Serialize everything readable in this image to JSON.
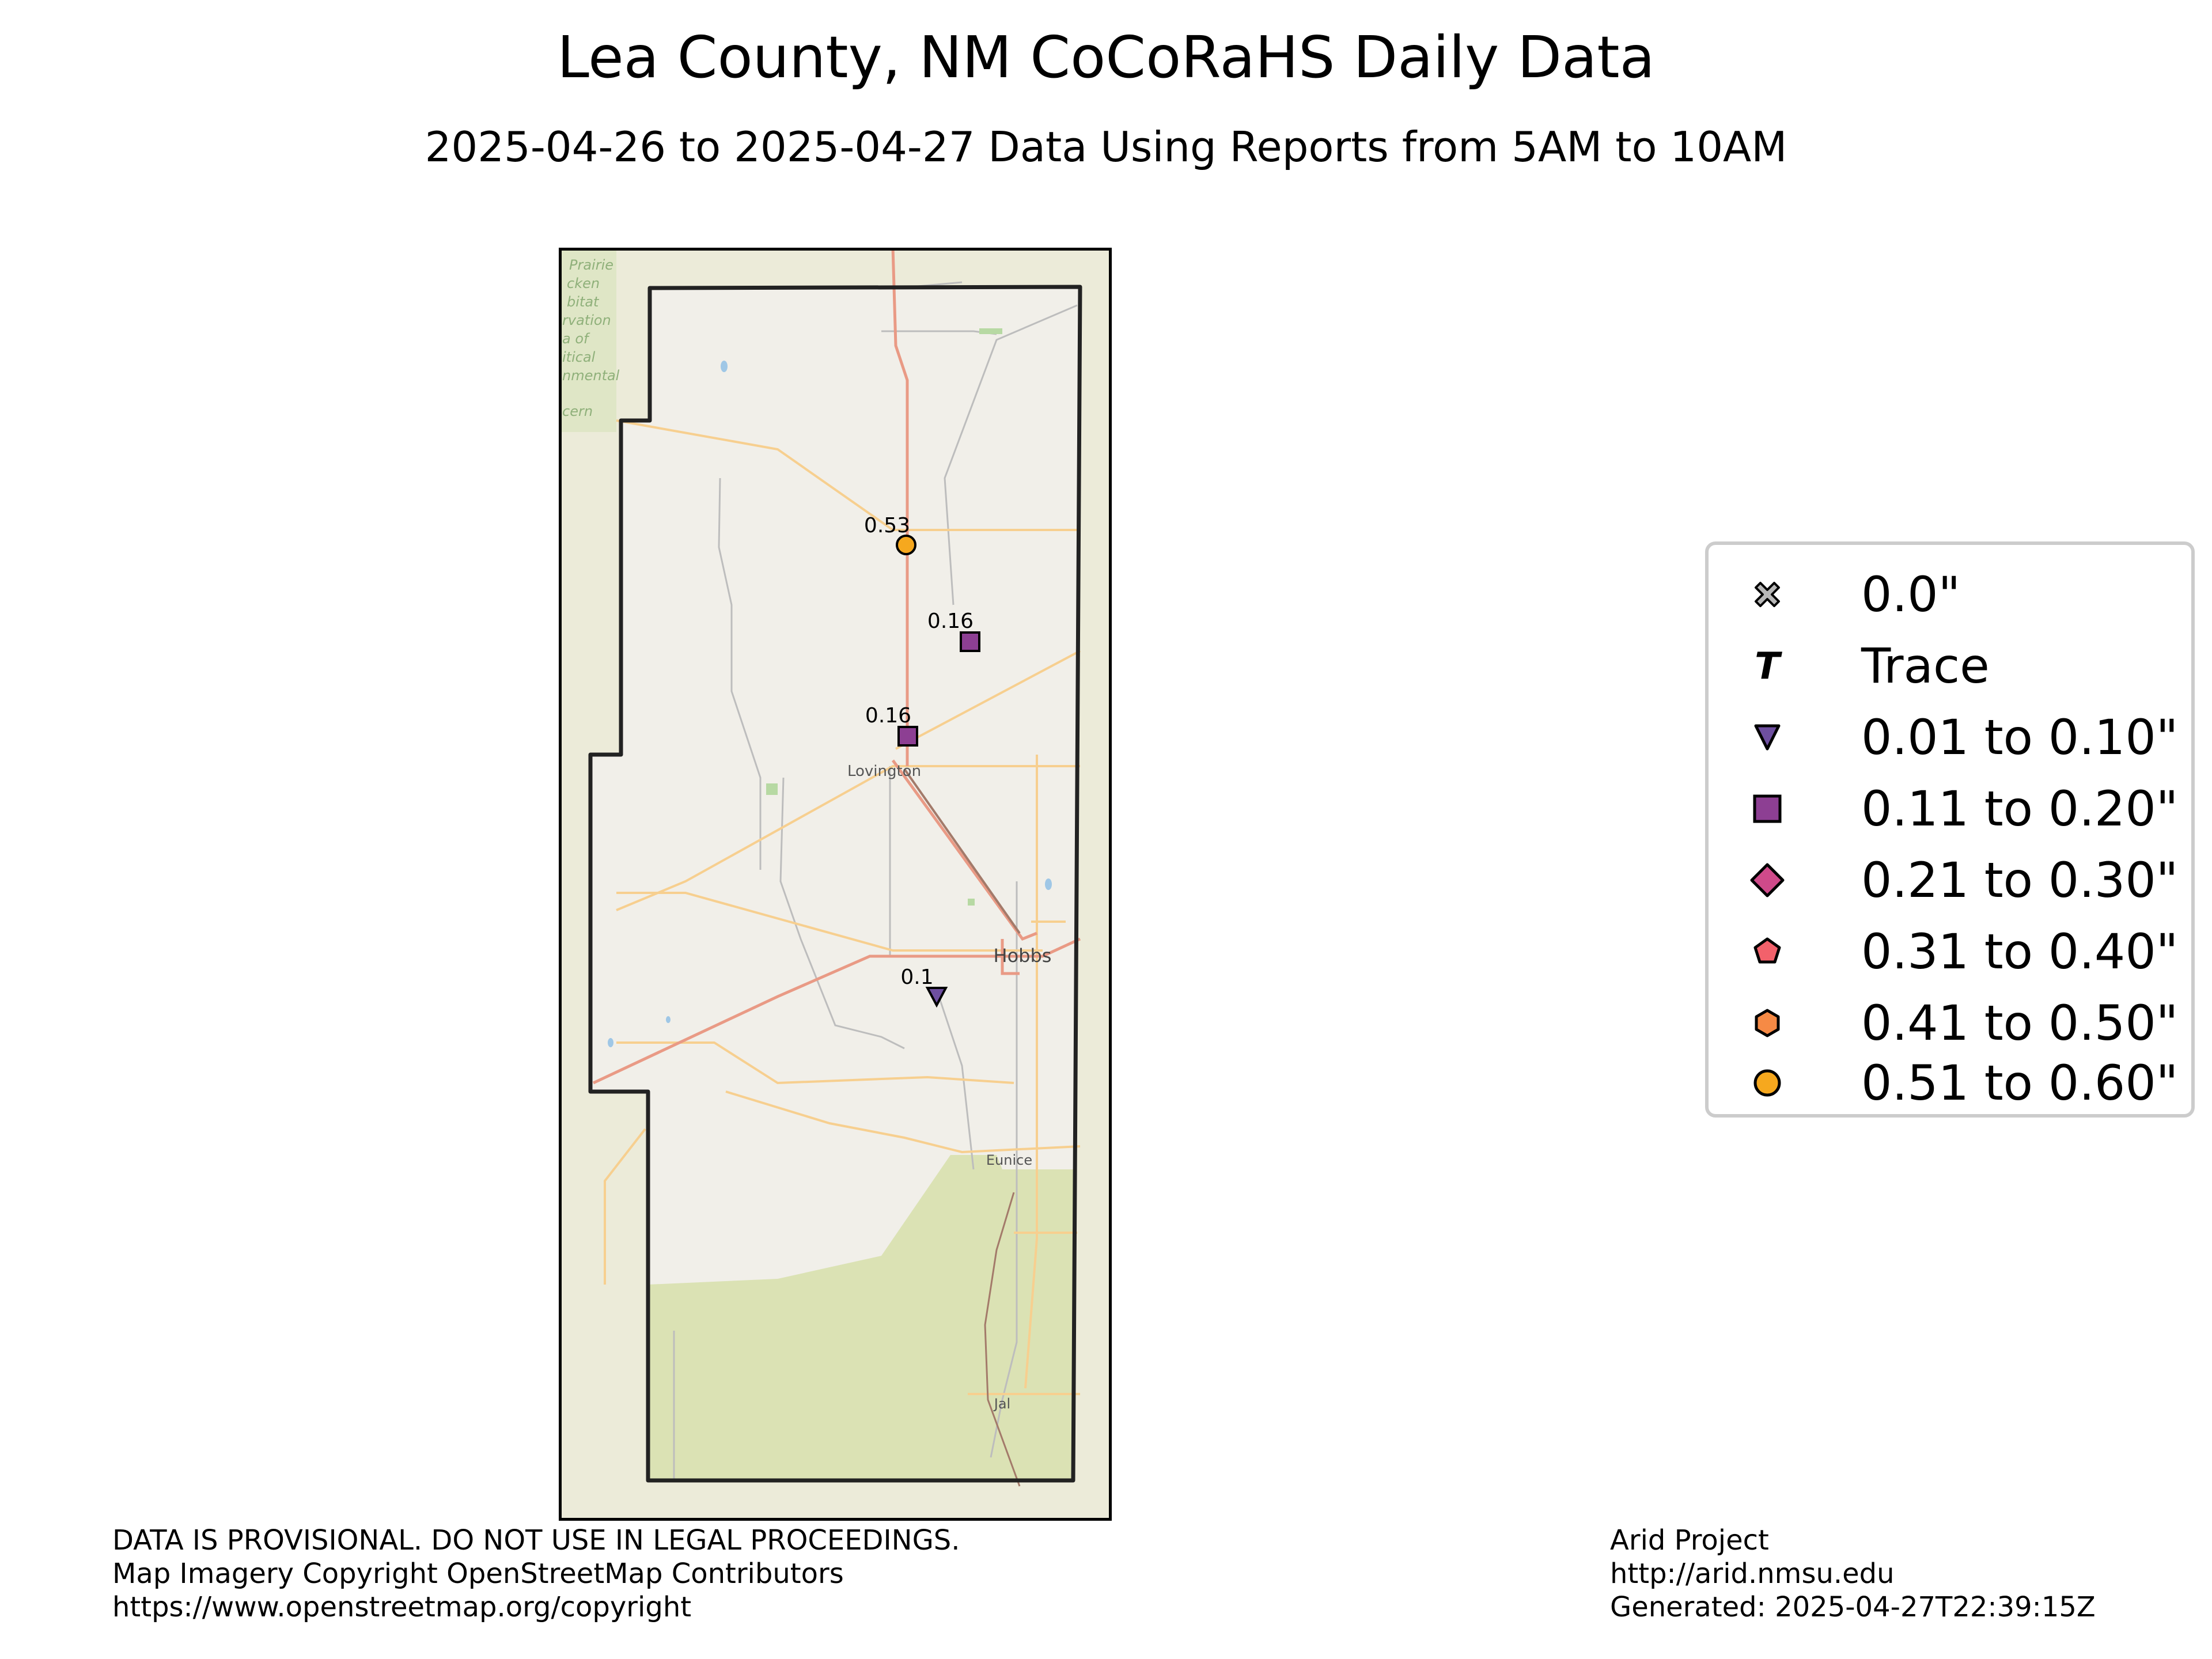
{
  "title": "Lea County, NM CoCoRaHS Daily Data",
  "subtitle": "2025-04-26 to 2025-04-27 Data Using Reports from 5AM to 10AM",
  "map": {
    "basemap_labels": {
      "lovington": "Lovington",
      "hobbs": "Hobbs",
      "eunice": "Eunice",
      "jal": "Jal",
      "area_text": [
        "Prairie",
        "cken",
        "bitat",
        "rvation",
        "a of",
        "itical",
        "nmental",
        "cern"
      ]
    },
    "stations": [
      {
        "value_label": "0.53",
        "value": 0.53,
        "category": "0.51 to 0.60\""
      },
      {
        "value_label": "0.16",
        "value": 0.16,
        "category": "0.11 to 0.20\""
      },
      {
        "value_label": "0.16",
        "value": 0.16,
        "category": "0.11 to 0.20\""
      },
      {
        "value_label": "0.1",
        "value": 0.1,
        "category": "0.01 to 0.10\""
      }
    ],
    "colors": {
      "basemap": "#f1efe9",
      "border": "#222222",
      "vegetation": "#dbe2b4",
      "primary_road": "#e99a85",
      "secondary_road": "#f7cf8f",
      "minor_road": "#bdbdbd",
      "water": "#9fc7e6"
    }
  },
  "legend": [
    {
      "label": "0.0\"",
      "icon": "x-icon",
      "color": "#b8b8b8"
    },
    {
      "label": "Trace",
      "icon": "t-icon",
      "color": "#000000"
    },
    {
      "label": "0.01 to 0.10\"",
      "icon": "triangle-icon",
      "color": "#6e4fa0"
    },
    {
      "label": "0.11 to 0.20\"",
      "icon": "square-icon",
      "color": "#8d3f93"
    },
    {
      "label": "0.21 to 0.30\"",
      "icon": "diamond-icon",
      "color": "#cf4a8a"
    },
    {
      "label": "0.31 to 0.40\"",
      "icon": "pentagon-icon",
      "color": "#f2616b"
    },
    {
      "label": "0.41 to 0.50\"",
      "icon": "hexagon-icon",
      "color": "#f68a45"
    },
    {
      "label": "0.51 to 0.60\"",
      "icon": "circle-icon",
      "color": "#f6a81e"
    }
  ],
  "footer_left": [
    "DATA IS PROVISIONAL. DO NOT USE IN LEGAL PROCEEDINGS.",
    "Map Imagery Copyright OpenStreetMap Contributors",
    "https://www.openstreetmap.org/copyright"
  ],
  "footer_right": [
    "Arid Project",
    "http://arid.nmsu.edu",
    "Generated: 2025-04-27T22:39:15Z"
  ]
}
